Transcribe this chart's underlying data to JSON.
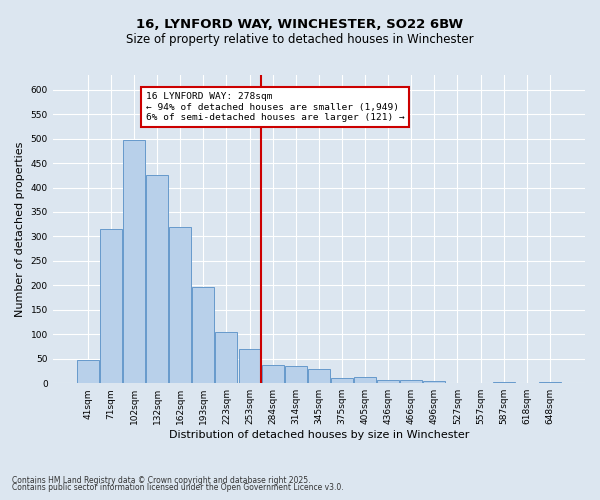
{
  "title_line1": "16, LYNFORD WAY, WINCHESTER, SO22 6BW",
  "title_line2": "Size of property relative to detached houses in Winchester",
  "xlabel": "Distribution of detached houses by size in Winchester",
  "ylabel": "Number of detached properties",
  "categories": [
    "41sqm",
    "71sqm",
    "102sqm",
    "132sqm",
    "162sqm",
    "193sqm",
    "223sqm",
    "253sqm",
    "284sqm",
    "314sqm",
    "345sqm",
    "375sqm",
    "405sqm",
    "436sqm",
    "466sqm",
    "496sqm",
    "527sqm",
    "557sqm",
    "587sqm",
    "618sqm",
    "648sqm"
  ],
  "values": [
    48,
    315,
    497,
    425,
    320,
    196,
    105,
    70,
    38,
    35,
    30,
    11,
    12,
    7,
    6,
    4,
    1,
    0,
    3,
    0,
    2
  ],
  "bar_color": "#b8d0ea",
  "bar_edge_color": "#6699cc",
  "vline_x": 7.5,
  "annotation_text": "16 LYNFORD WAY: 278sqm\n← 94% of detached houses are smaller (1,949)\n6% of semi-detached houses are larger (121) →",
  "annotation_box_color": "#ffffff",
  "annotation_box_edge": "#cc0000",
  "vline_color": "#cc0000",
  "background_color": "#dce6f0",
  "grid_color": "#ffffff",
  "ylim": [
    0,
    630
  ],
  "yticks": [
    0,
    50,
    100,
    150,
    200,
    250,
    300,
    350,
    400,
    450,
    500,
    550,
    600
  ],
  "footnote_line1": "Contains HM Land Registry data © Crown copyright and database right 2025.",
  "footnote_line2": "Contains public sector information licensed under the Open Government Licence v3.0.",
  "title_fontsize": 9.5,
  "subtitle_fontsize": 8.5,
  "tick_fontsize": 6.5,
  "ylabel_fontsize": 8,
  "xlabel_fontsize": 8,
  "annot_fontsize": 6.8,
  "footnote_fontsize": 5.5
}
